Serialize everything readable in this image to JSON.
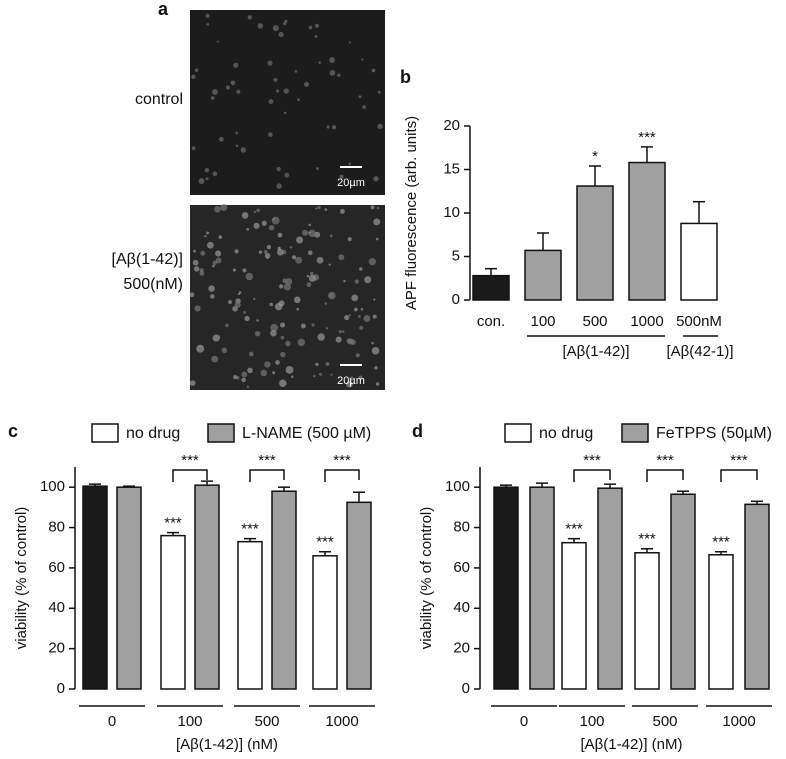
{
  "panel_a": {
    "label": "a",
    "images": [
      {
        "label": [
          "control"
        ],
        "scale_bar": "20µm"
      },
      {
        "label": [
          "[Aβ(1-42)]",
          "500(nM)"
        ],
        "scale_bar": "20µm"
      }
    ]
  },
  "chart_data": [
    {
      "type": "bar",
      "panel": "b",
      "ylabel": "APF fluorescence (arb. units)",
      "categories": [
        "con.",
        "100",
        "500",
        "1000",
        "500nM"
      ],
      "values": [
        2.8,
        5.7,
        13.1,
        15.8,
        8.8
      ],
      "errors": [
        0.8,
        2.0,
        2.3,
        1.8,
        2.5
      ],
      "colors": [
        "#1a1a1a",
        "#a0a0a0",
        "#a0a0a0",
        "#a0a0a0",
        "#ffffff"
      ],
      "significance": [
        null,
        null,
        "*",
        "***",
        null
      ],
      "group_labels": [
        "[Aβ(1-42)]",
        "[Aβ(42-1)]"
      ],
      "ylim": [
        0,
        20
      ],
      "yticks": [
        0,
        5,
        10,
        15,
        20
      ]
    },
    {
      "type": "grouped_bar",
      "panel": "c",
      "ylabel": "viability (% of control)",
      "xlabel": "[Aβ(1-42)] (nM)",
      "categories": [
        "0",
        "100",
        "500",
        "1000"
      ],
      "series": [
        {
          "name": "no drug",
          "color": "#ffffff",
          "colors": [
            "#1a1a1a",
            "#ffffff",
            "#ffffff",
            "#ffffff"
          ],
          "values": [
            100.5,
            76,
            73,
            66
          ],
          "errors": [
            1,
            1.5,
            1.5,
            2
          ],
          "significance": [
            null,
            "***",
            "***",
            "***"
          ]
        },
        {
          "name": "L-NAME (500 µM)",
          "color": "#a0a0a0",
          "values": [
            100,
            101,
            98,
            92.5
          ],
          "errors": [
            0.5,
            2,
            2,
            5
          ]
        }
      ],
      "brackets": [
        null,
        "***",
        "***",
        "***"
      ],
      "ylim": [
        0,
        110
      ],
      "yticks": [
        0,
        20,
        40,
        60,
        80,
        100
      ]
    },
    {
      "type": "grouped_bar",
      "panel": "d",
      "ylabel": "viability (% of control)",
      "xlabel": "[Aβ(1-42)] (nM)",
      "categories": [
        "0",
        "100",
        "500",
        "1000"
      ],
      "series": [
        {
          "name": "no drug",
          "color": "#ffffff",
          "colors": [
            "#1a1a1a",
            "#ffffff",
            "#ffffff",
            "#ffffff"
          ],
          "values": [
            100,
            72.5,
            67.5,
            66.5
          ],
          "errors": [
            1,
            2,
            2,
            1.5
          ],
          "significance": [
            null,
            "***",
            "***",
            "***"
          ]
        },
        {
          "name": "FeTPPS (50µM)",
          "color": "#a0a0a0",
          "values": [
            100,
            99.5,
            96.5,
            91.5
          ],
          "errors": [
            2,
            2,
            1.5,
            1.5
          ]
        }
      ],
      "brackets": [
        null,
        "***",
        "***",
        "***"
      ],
      "ylim": [
        0,
        110
      ],
      "yticks": [
        0,
        20,
        40,
        60,
        80,
        100
      ]
    }
  ]
}
